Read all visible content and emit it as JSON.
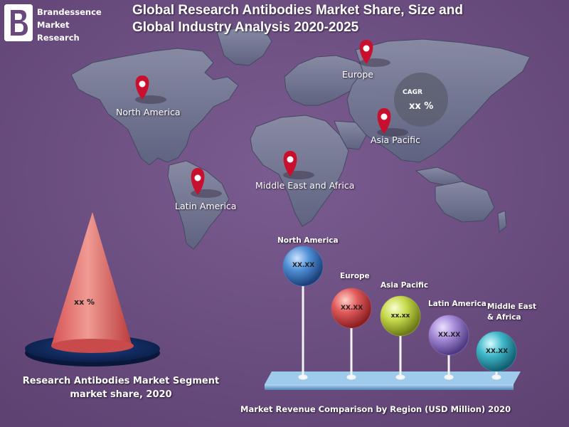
{
  "brand": {
    "name_line1": "Brandessence",
    "name_line2": "Market",
    "name_line3": "Research"
  },
  "header": {
    "title_line1": "Global Research Antibodies Market Share, Size and",
    "title_line2": "Global Industry Analysis 2020-2025"
  },
  "map": {
    "regions": {
      "north_america": "North America",
      "europe": "Europe",
      "asia_pacific": "Asia Pacific",
      "middle_east_africa": "Middle East and Africa",
      "latin_america": "Latin America"
    },
    "cagr_label": "CAGR",
    "cagr_value": "xx %",
    "pin_color": "#c8102e"
  },
  "segment": {
    "cone_value": "xx %",
    "caption_line1": "Research Antibodies  Market Segment",
    "caption_line2": "market share, 2020"
  },
  "region_comparison": {
    "caption": "Market Revenue Comparison by Region (USD Million) 2020",
    "balls": [
      {
        "label": "North America",
        "value": "XX.XX",
        "color": "#4f8fd6"
      },
      {
        "label": "Europe",
        "value": "XX.XX",
        "color": "#e05a5a"
      },
      {
        "label": "Asia Pacific",
        "value": "xx.xx",
        "color": "#c6d84a"
      },
      {
        "label": "Latin America",
        "value": "XX.XX",
        "color": "#a48ad6"
      },
      {
        "label": "Middle East & Africa",
        "value": "XX.XX",
        "color": "#3fb7c9"
      }
    ],
    "mea_label_line1": "Middle East",
    "mea_label_line2": "& Africa"
  }
}
